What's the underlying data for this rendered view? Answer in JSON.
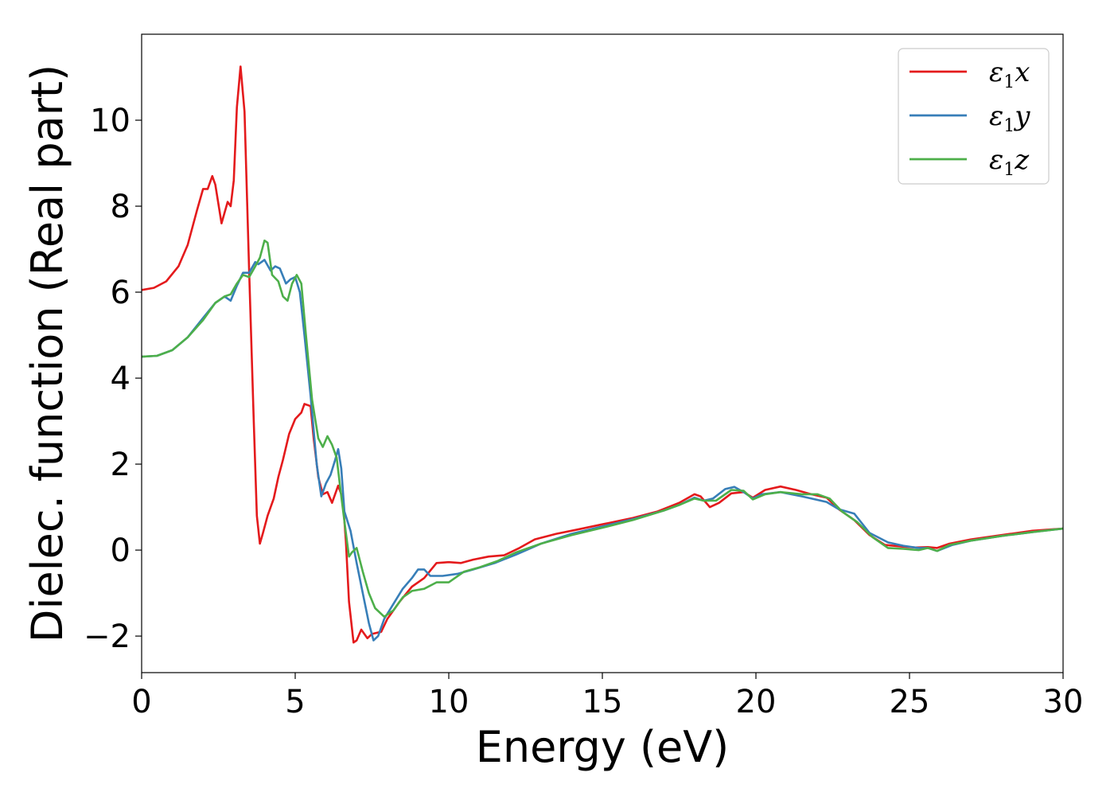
{
  "chart_data": {
    "type": "line",
    "xlabel": "Energy (eV)",
    "ylabel": "Dielec. function (Real part)",
    "xlim": [
      0,
      30
    ],
    "ylim": [
      -2.85,
      12.0
    ],
    "xticks": [
      0,
      5,
      10,
      15,
      20,
      25,
      30
    ],
    "yticks": [
      -2,
      0,
      2,
      4,
      6,
      8,
      10
    ],
    "grid": false,
    "legend_position": "top-right",
    "series": [
      {
        "name": "ε1x",
        "label_base": "ε",
        "label_sub": "1",
        "label_suffix": "x",
        "color": "#e41a1c",
        "points": [
          [
            0,
            6.05
          ],
          [
            0.4,
            6.1
          ],
          [
            0.8,
            6.25
          ],
          [
            1.2,
            6.6
          ],
          [
            1.5,
            7.1
          ],
          [
            1.8,
            7.9
          ],
          [
            2.0,
            8.4
          ],
          [
            2.15,
            8.4
          ],
          [
            2.3,
            8.7
          ],
          [
            2.4,
            8.5
          ],
          [
            2.6,
            7.6
          ],
          [
            2.8,
            8.1
          ],
          [
            2.9,
            8.0
          ],
          [
            3.0,
            8.6
          ],
          [
            3.1,
            10.3
          ],
          [
            3.22,
            11.25
          ],
          [
            3.35,
            10.2
          ],
          [
            3.5,
            6.5
          ],
          [
            3.65,
            3.0
          ],
          [
            3.75,
            0.8
          ],
          [
            3.85,
            0.15
          ],
          [
            3.95,
            0.4
          ],
          [
            4.1,
            0.8
          ],
          [
            4.3,
            1.2
          ],
          [
            4.45,
            1.7
          ],
          [
            4.6,
            2.1
          ],
          [
            4.8,
            2.7
          ],
          [
            5.0,
            3.05
          ],
          [
            5.2,
            3.2
          ],
          [
            5.3,
            3.4
          ],
          [
            5.5,
            3.35
          ],
          [
            5.6,
            2.6
          ],
          [
            5.75,
            1.7
          ],
          [
            5.9,
            1.3
          ],
          [
            6.05,
            1.35
          ],
          [
            6.2,
            1.1
          ],
          [
            6.4,
            1.5
          ],
          [
            6.55,
            1.2
          ],
          [
            6.65,
            0.2
          ],
          [
            6.75,
            -1.2
          ],
          [
            6.9,
            -2.15
          ],
          [
            7.0,
            -2.1
          ],
          [
            7.15,
            -1.85
          ],
          [
            7.35,
            -2.05
          ],
          [
            7.5,
            -1.95
          ],
          [
            7.8,
            -1.9
          ],
          [
            8.0,
            -1.6
          ],
          [
            8.4,
            -1.2
          ],
          [
            8.8,
            -0.85
          ],
          [
            9.2,
            -0.65
          ],
          [
            9.6,
            -0.3
          ],
          [
            10.0,
            -0.28
          ],
          [
            10.4,
            -0.3
          ],
          [
            10.8,
            -0.22
          ],
          [
            11.3,
            -0.15
          ],
          [
            11.8,
            -0.12
          ],
          [
            12.3,
            0.05
          ],
          [
            12.8,
            0.25
          ],
          [
            13.5,
            0.38
          ],
          [
            14.2,
            0.48
          ],
          [
            15.0,
            0.6
          ],
          [
            16.0,
            0.75
          ],
          [
            16.8,
            0.9
          ],
          [
            17.5,
            1.1
          ],
          [
            18.0,
            1.3
          ],
          [
            18.2,
            1.25
          ],
          [
            18.5,
            1.0
          ],
          [
            18.8,
            1.1
          ],
          [
            19.2,
            1.32
          ],
          [
            19.6,
            1.35
          ],
          [
            19.9,
            1.22
          ],
          [
            20.3,
            1.4
          ],
          [
            20.8,
            1.48
          ],
          [
            21.3,
            1.4
          ],
          [
            21.8,
            1.3
          ],
          [
            22.3,
            1.22
          ],
          [
            22.7,
            0.95
          ],
          [
            23.2,
            0.7
          ],
          [
            23.7,
            0.35
          ],
          [
            24.2,
            0.12
          ],
          [
            24.8,
            0.08
          ],
          [
            25.2,
            0.06
          ],
          [
            25.6,
            0.07
          ],
          [
            25.9,
            0.05
          ],
          [
            26.3,
            0.15
          ],
          [
            27.0,
            0.25
          ],
          [
            28.0,
            0.35
          ],
          [
            29.0,
            0.45
          ],
          [
            30.0,
            0.5
          ]
        ]
      },
      {
        "name": "ε1y",
        "label_base": "ε",
        "label_sub": "1",
        "label_suffix": "y",
        "color": "#377eb8",
        "points": [
          [
            0,
            4.5
          ],
          [
            0.5,
            4.52
          ],
          [
            1.0,
            4.65
          ],
          [
            1.5,
            4.95
          ],
          [
            2.0,
            5.4
          ],
          [
            2.4,
            5.75
          ],
          [
            2.7,
            5.9
          ],
          [
            2.9,
            5.8
          ],
          [
            3.1,
            6.15
          ],
          [
            3.3,
            6.45
          ],
          [
            3.5,
            6.45
          ],
          [
            3.7,
            6.7
          ],
          [
            3.8,
            6.65
          ],
          [
            4.0,
            6.75
          ],
          [
            4.2,
            6.5
          ],
          [
            4.35,
            6.6
          ],
          [
            4.5,
            6.55
          ],
          [
            4.7,
            6.2
          ],
          [
            4.85,
            6.3
          ],
          [
            5.0,
            6.35
          ],
          [
            5.15,
            6.0
          ],
          [
            5.3,
            5.0
          ],
          [
            5.5,
            3.6
          ],
          [
            5.7,
            2.0
          ],
          [
            5.85,
            1.25
          ],
          [
            6.0,
            1.55
          ],
          [
            6.15,
            1.75
          ],
          [
            6.3,
            2.1
          ],
          [
            6.4,
            2.35
          ],
          [
            6.5,
            1.9
          ],
          [
            6.6,
            0.9
          ],
          [
            6.8,
            0.45
          ],
          [
            7.0,
            -0.3
          ],
          [
            7.2,
            -1.0
          ],
          [
            7.4,
            -1.7
          ],
          [
            7.55,
            -2.1
          ],
          [
            7.7,
            -2.0
          ],
          [
            7.9,
            -1.6
          ],
          [
            8.2,
            -1.25
          ],
          [
            8.5,
            -0.9
          ],
          [
            8.8,
            -0.65
          ],
          [
            9.0,
            -0.45
          ],
          [
            9.2,
            -0.45
          ],
          [
            9.4,
            -0.6
          ],
          [
            9.8,
            -0.6
          ],
          [
            10.3,
            -0.55
          ],
          [
            10.8,
            -0.45
          ],
          [
            11.5,
            -0.3
          ],
          [
            12.2,
            -0.1
          ],
          [
            13.0,
            0.15
          ],
          [
            14.0,
            0.38
          ],
          [
            15.0,
            0.55
          ],
          [
            16.0,
            0.72
          ],
          [
            17.0,
            0.92
          ],
          [
            17.5,
            1.05
          ],
          [
            18.0,
            1.22
          ],
          [
            18.3,
            1.15
          ],
          [
            18.6,
            1.2
          ],
          [
            19.0,
            1.42
          ],
          [
            19.3,
            1.47
          ],
          [
            19.6,
            1.35
          ],
          [
            19.9,
            1.2
          ],
          [
            20.2,
            1.3
          ],
          [
            20.8,
            1.35
          ],
          [
            21.5,
            1.25
          ],
          [
            22.3,
            1.12
          ],
          [
            22.7,
            0.95
          ],
          [
            23.2,
            0.85
          ],
          [
            23.7,
            0.4
          ],
          [
            24.3,
            0.18
          ],
          [
            24.8,
            0.1
          ],
          [
            25.3,
            0.05
          ],
          [
            25.6,
            0.05
          ],
          [
            25.9,
            -0.02
          ],
          [
            26.4,
            0.12
          ],
          [
            27.0,
            0.22
          ],
          [
            28.0,
            0.33
          ],
          [
            29.0,
            0.42
          ],
          [
            30.0,
            0.5
          ]
        ]
      },
      {
        "name": "ε1z",
        "label_base": "ε",
        "label_sub": "1",
        "label_suffix": "z",
        "color": "#4daf4a",
        "points": [
          [
            0,
            4.5
          ],
          [
            0.5,
            4.52
          ],
          [
            1.0,
            4.65
          ],
          [
            1.5,
            4.95
          ],
          [
            2.0,
            5.35
          ],
          [
            2.4,
            5.75
          ],
          [
            2.7,
            5.9
          ],
          [
            2.9,
            5.95
          ],
          [
            3.1,
            6.2
          ],
          [
            3.3,
            6.4
          ],
          [
            3.5,
            6.35
          ],
          [
            3.7,
            6.6
          ],
          [
            3.85,
            6.8
          ],
          [
            4.0,
            7.2
          ],
          [
            4.1,
            7.15
          ],
          [
            4.25,
            6.4
          ],
          [
            4.45,
            6.25
          ],
          [
            4.6,
            5.9
          ],
          [
            4.75,
            5.8
          ],
          [
            4.9,
            6.2
          ],
          [
            5.05,
            6.4
          ],
          [
            5.2,
            6.2
          ],
          [
            5.35,
            5.0
          ],
          [
            5.55,
            3.5
          ],
          [
            5.75,
            2.6
          ],
          [
            5.9,
            2.4
          ],
          [
            6.05,
            2.65
          ],
          [
            6.2,
            2.45
          ],
          [
            6.35,
            2.15
          ],
          [
            6.5,
            1.25
          ],
          [
            6.65,
            0.4
          ],
          [
            6.75,
            -0.15
          ],
          [
            6.85,
            -0.05
          ],
          [
            7.0,
            0.05
          ],
          [
            7.2,
            -0.5
          ],
          [
            7.4,
            -1.0
          ],
          [
            7.6,
            -1.35
          ],
          [
            7.9,
            -1.55
          ],
          [
            8.2,
            -1.4
          ],
          [
            8.5,
            -1.1
          ],
          [
            8.8,
            -0.95
          ],
          [
            9.2,
            -0.9
          ],
          [
            9.6,
            -0.75
          ],
          [
            10.0,
            -0.75
          ],
          [
            10.5,
            -0.5
          ],
          [
            11.0,
            -0.4
          ],
          [
            11.6,
            -0.25
          ],
          [
            12.2,
            -0.05
          ],
          [
            13.0,
            0.15
          ],
          [
            14.0,
            0.35
          ],
          [
            15.0,
            0.52
          ],
          [
            16.0,
            0.7
          ],
          [
            17.0,
            0.92
          ],
          [
            17.5,
            1.05
          ],
          [
            18.0,
            1.2
          ],
          [
            18.3,
            1.15
          ],
          [
            18.7,
            1.15
          ],
          [
            19.2,
            1.4
          ],
          [
            19.6,
            1.38
          ],
          [
            19.9,
            1.18
          ],
          [
            20.3,
            1.3
          ],
          [
            20.8,
            1.35
          ],
          [
            21.5,
            1.3
          ],
          [
            22.0,
            1.3
          ],
          [
            22.4,
            1.2
          ],
          [
            22.8,
            0.9
          ],
          [
            23.3,
            0.65
          ],
          [
            23.8,
            0.3
          ],
          [
            24.3,
            0.05
          ],
          [
            24.8,
            0.03
          ],
          [
            25.3,
            0.0
          ],
          [
            25.6,
            0.05
          ],
          [
            25.9,
            -0.02
          ],
          [
            26.3,
            0.12
          ],
          [
            27.0,
            0.22
          ],
          [
            28.0,
            0.33
          ],
          [
            29.0,
            0.42
          ],
          [
            30.0,
            0.5
          ]
        ]
      }
    ]
  }
}
